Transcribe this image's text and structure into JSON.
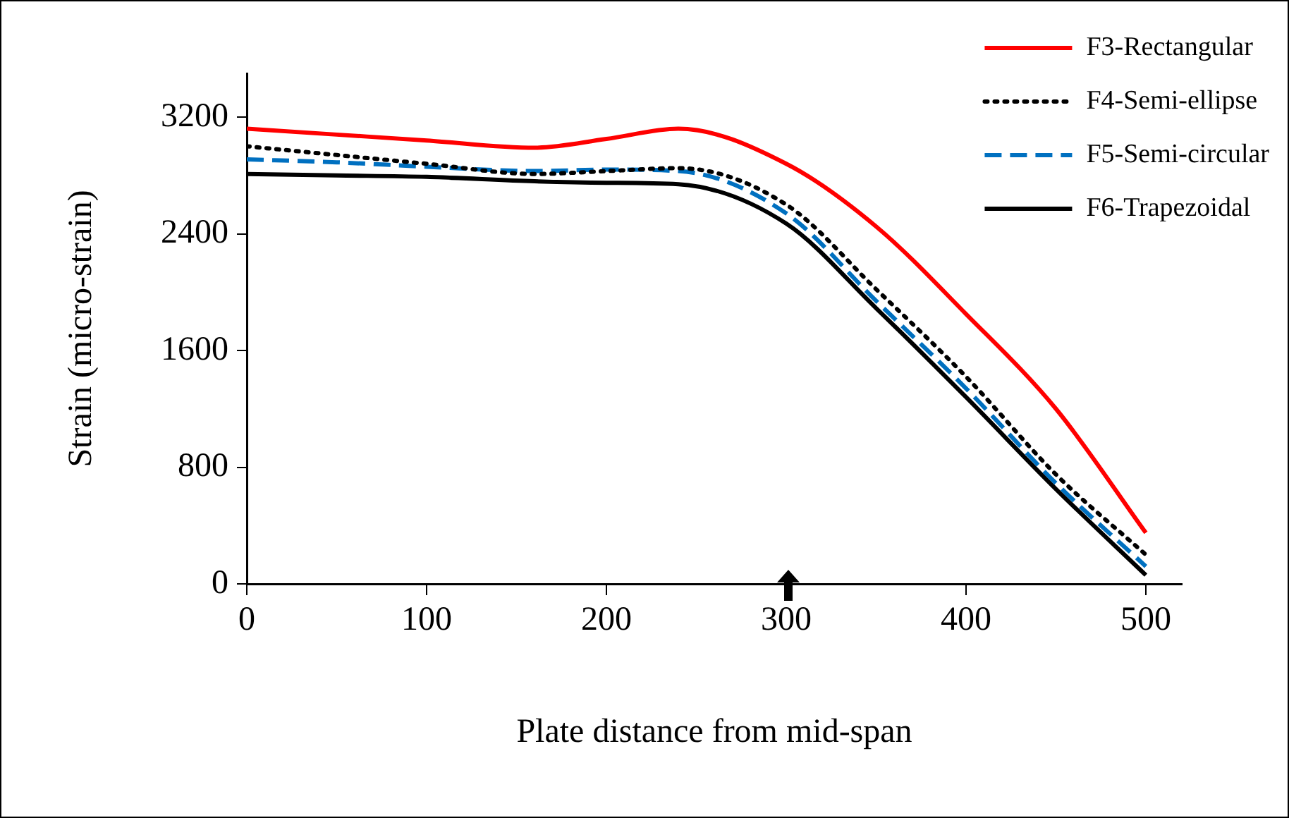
{
  "chart_data": {
    "type": "line",
    "xlabel": "Plate distance from mid-span",
    "ylabel": "Strain (micro-strain)",
    "x": [
      0,
      50,
      100,
      160,
      200,
      240,
      300,
      350,
      400,
      450,
      500
    ],
    "xlim": [
      0,
      520
    ],
    "xticks": [
      0,
      100,
      200,
      300,
      400,
      500
    ],
    "ylim": [
      0,
      3500
    ],
    "yticks": [
      0,
      800,
      1600,
      2400,
      3200
    ],
    "grid": false,
    "legend": "top right",
    "marker": "none",
    "series": [
      {
        "name": "F3-Rectangular",
        "color": "#ff0000",
        "line_style": "solid",
        "values": [
          3120,
          3080,
          3040,
          2990,
          3050,
          3120,
          2880,
          2450,
          1850,
          1200,
          350
        ]
      },
      {
        "name": "F4-Semi-ellipse",
        "color": "#000000",
        "line_style": "dotted",
        "values": [
          3000,
          2940,
          2880,
          2810,
          2830,
          2850,
          2600,
          2020,
          1420,
          750,
          200
        ]
      },
      {
        "name": "F5-Semi-circular",
        "color": "#0070c0",
        "line_style": "dashed",
        "values": [
          2910,
          2890,
          2860,
          2830,
          2840,
          2830,
          2540,
          1940,
          1340,
          690,
          120
        ]
      },
      {
        "name": "F6-Trapezoidal",
        "color": "#000000",
        "line_style": "solid",
        "values": [
          2810,
          2800,
          2790,
          2760,
          2750,
          2740,
          2470,
          1890,
          1280,
          650,
          60
        ]
      }
    ]
  }
}
